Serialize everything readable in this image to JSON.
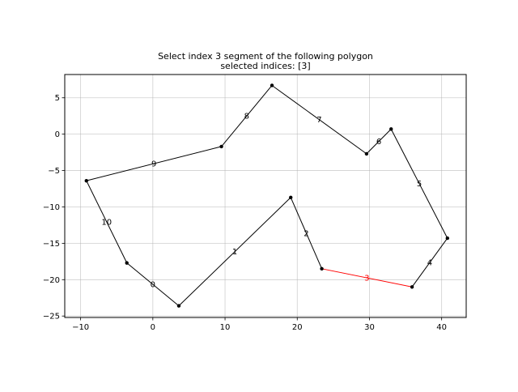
{
  "chart_data": {
    "type": "line",
    "title": "Select index 3 segment of the following polygon",
    "subtitle": "selected indices: [3]",
    "xlabel": "",
    "ylabel": "",
    "xlim": [
      -12.2,
      43.4
    ],
    "ylim": [
      -25.2,
      8.2
    ],
    "x_ticks": [
      -10,
      0,
      10,
      20,
      30,
      40
    ],
    "y_ticks": [
      -25,
      -20,
      -15,
      -10,
      -5,
      0,
      5
    ],
    "grid": true,
    "line_color": "#000000",
    "selected_color": "#ff0000",
    "selected_indices": [
      3
    ],
    "vertices": [
      {
        "x": -3.6,
        "y": -17.7
      },
      {
        "x": 3.6,
        "y": -23.6
      },
      {
        "x": 19.1,
        "y": -8.7
      },
      {
        "x": 23.4,
        "y": -18.5
      },
      {
        "x": 35.9,
        "y": -21.0
      },
      {
        "x": 40.8,
        "y": -14.3
      },
      {
        "x": 33.0,
        "y": 0.7
      },
      {
        "x": 29.6,
        "y": -2.7
      },
      {
        "x": 16.5,
        "y": 6.7
      },
      {
        "x": 9.5,
        "y": -1.7
      },
      {
        "x": -9.2,
        "y": -6.4
      }
    ],
    "segment_labels": [
      "0",
      "1",
      "2",
      "3",
      "4",
      "5",
      "6",
      "7",
      "8",
      "9",
      "10"
    ]
  }
}
